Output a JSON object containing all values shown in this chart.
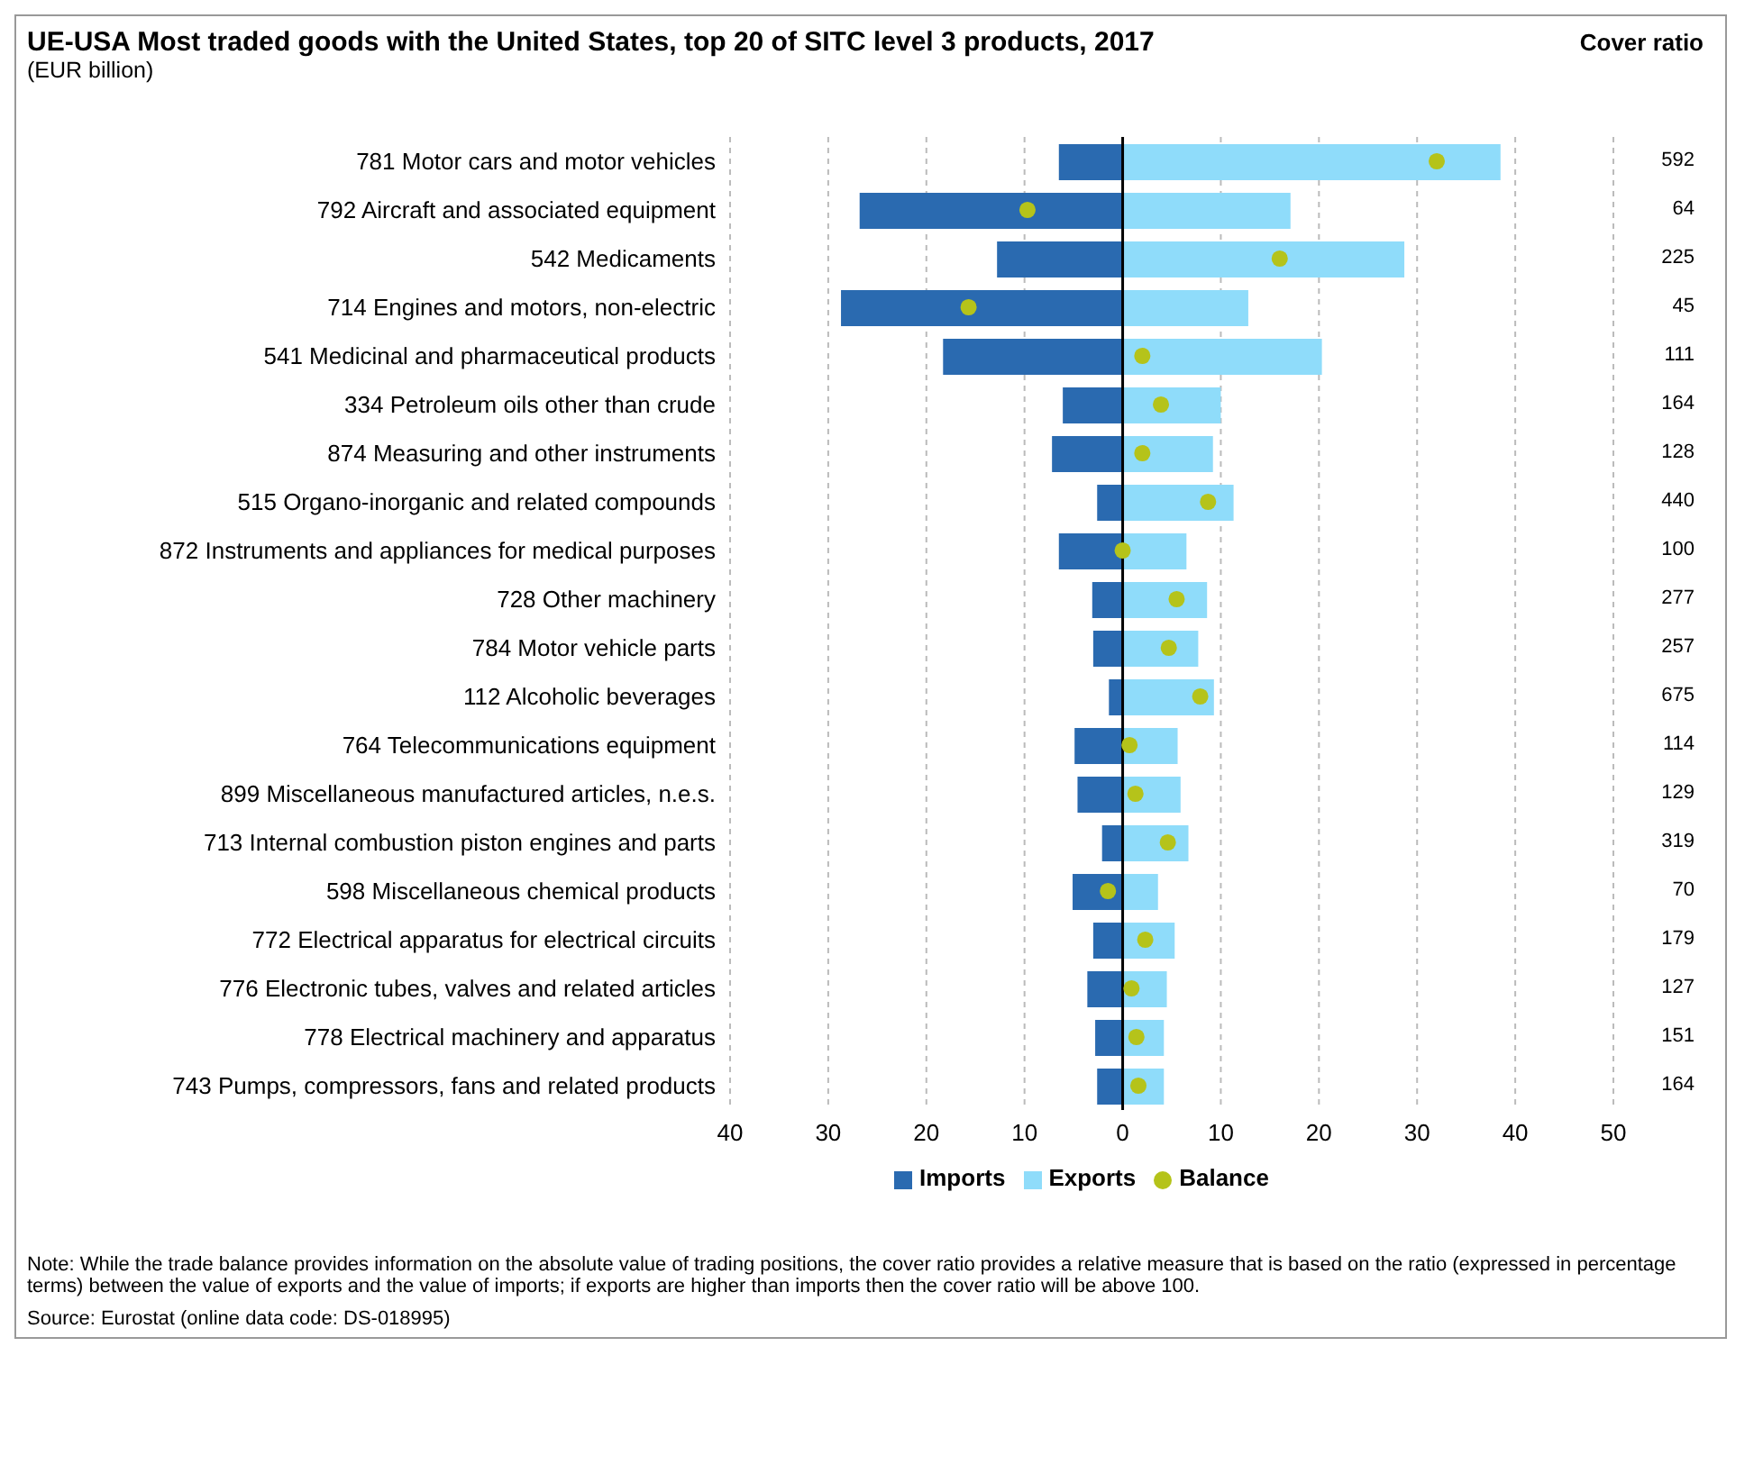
{
  "chart_data": {
    "type": "bar",
    "orientation": "horizontal",
    "stacked": true,
    "title": "UE-USA Most traded goods with the United States, top 20 of SITC level 3 products, 2017",
    "subtitle": "(EUR billion)",
    "categories": [
      "781 Motor cars and motor vehicles",
      "792 Aircraft and associated equipment",
      "542 Medicaments",
      "714 Engines and motors, non-electric",
      "541 Medicinal and pharmaceutical products",
      "334 Petroleum oils other than crude",
      "874 Measuring and other instruments",
      "515 Organo-inorganic and related compounds",
      "872 Instruments and appliances for medical purposes",
      "728 Other machinery",
      "784 Motor vehicle parts",
      "112 Alcoholic beverages",
      "764 Telecommunications equipment",
      "899 Miscellaneous manufactured articles, n.e.s.",
      "713 Internal combustion piston engines and parts",
      "598 Miscellaneous chemical products",
      "772 Electrical apparatus for electrical circuits",
      "776 Electronic tubes, valves and related articles",
      "778 Electrical machinery and apparatus",
      "743 Pumps, compressors, fans and related products"
    ],
    "series": [
      {
        "name": "Imports",
        "color": "#2a6ab0",
        "values": [
          -6.5,
          -26.8,
          -12.8,
          -28.7,
          -18.3,
          -6.1,
          -7.2,
          -2.6,
          -6.5,
          -3.1,
          -3.0,
          -1.4,
          -4.9,
          -4.6,
          -2.1,
          -5.1,
          -3.0,
          -3.6,
          -2.8,
          -2.6
        ]
      },
      {
        "name": "Exports",
        "color": "#8fdcfa",
        "values": [
          38.5,
          17.1,
          28.7,
          12.8,
          20.3,
          10.0,
          9.2,
          11.3,
          6.5,
          8.6,
          7.7,
          9.3,
          5.6,
          5.9,
          6.7,
          3.6,
          5.3,
          4.5,
          4.2,
          4.2
        ]
      },
      {
        "name": "Balance",
        "type": "scatter",
        "color": "#b5c31a",
        "marker": "circle",
        "values": [
          32.0,
          -9.7,
          16.0,
          -15.7,
          2.0,
          3.9,
          2.0,
          8.7,
          0.0,
          5.5,
          4.7,
          7.9,
          0.7,
          1.3,
          4.6,
          -1.5,
          2.3,
          0.9,
          1.4,
          1.6
        ]
      }
    ],
    "xlim": [
      -40,
      50
    ],
    "xticks": [
      {
        "value": -40,
        "label": "40"
      },
      {
        "value": -30,
        "label": "30"
      },
      {
        "value": -20,
        "label": "20"
      },
      {
        "value": -10,
        "label": "10"
      },
      0,
      10,
      20,
      30,
      40,
      50
    ],
    "grid": "x",
    "legend": "bottom",
    "ref_lines": [
      {
        "axis": "x",
        "value": 0,
        "label": null,
        "color": "#000000"
      }
    ],
    "annotations": [
      "Cover ratio",
      "592",
      "64",
      "225",
      "45",
      "111",
      "164",
      "128",
      "440",
      "100",
      "277",
      "257",
      "675",
      "114",
      "129",
      "319",
      "70",
      "179",
      "127",
      "151",
      "164",
      "Note: While the trade balance provides information on the absolute value of trading positions, the cover ratio provides a relative measure that is based on the ratio (expressed in percentage terms) between the value of exports and the value of imports; if exports are higher than imports then the cover ratio will be above 100.",
      "Source: Eurostat (online data code: DS-018995)"
    ]
  }
}
